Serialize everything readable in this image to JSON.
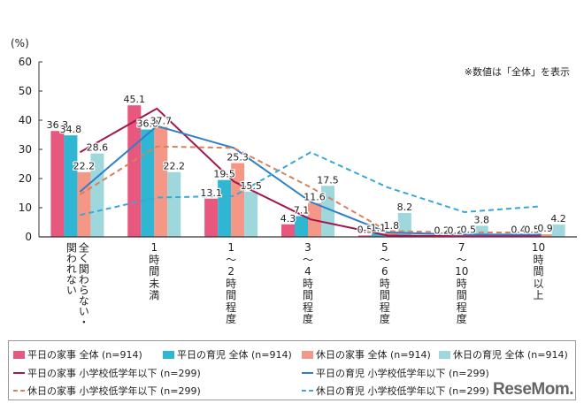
{
  "chart_data": {
    "type": "bar",
    "ylabel": "(%)",
    "note": "※数値は「全体」を表示",
    "ylim": [
      0,
      60
    ],
    "yticks": [
      0,
      10,
      20,
      30,
      40,
      50,
      60
    ],
    "grid": false,
    "legend_placement": "bottom",
    "categories": [
      "全く関わらない・\n関われない",
      "1\n時\n間\n未\n満",
      "1\n〜\n2\n時\n間\n程\n度",
      "3\n〜\n4\n時\n間\n程\n度",
      "5\n〜\n6\n時\n間\n程\n度",
      "7\n〜\n10\n時\n間\n程\n度",
      "10\n時\n間\n以\n上"
    ],
    "bar_series": [
      {
        "name": "平日の家事 全体 (n=914)",
        "color": "#e8577d",
        "values": [
          36.3,
          45.1,
          13.1,
          4.3,
          0.5,
          0.2,
          0.4
        ]
      },
      {
        "name": "平日の育児 全体 (n=914)",
        "color": "#2fb6d2",
        "values": [
          34.8,
          36.8,
          19.5,
          7.1,
          1.1,
          0.2,
          0.5
        ]
      },
      {
        "name": "休日の家事 全体 (n=914)",
        "color": "#f49787",
        "values": [
          22.2,
          37.7,
          25.3,
          11.6,
          1.8,
          0.5,
          0.9
        ]
      },
      {
        "name": "休日の育児 全体 (n=914)",
        "color": "#9fd8dc",
        "values": [
          28.6,
          22.2,
          15.5,
          17.5,
          8.2,
          3.8,
          4.2
        ]
      }
    ],
    "line_series": [
      {
        "name": "平日の家事 小学校低学年以下 (n=299)",
        "color": "#a3174f",
        "dashed": false,
        "values": [
          29,
          44,
          19,
          6,
          0.5,
          0.2,
          0.3
        ]
      },
      {
        "name": "平日の育児 小学校低学年以下 (n=299)",
        "color": "#2f7fc6",
        "dashed": false,
        "values": [
          15.5,
          38,
          30.5,
          12,
          1.5,
          0.8,
          0.8
        ]
      },
      {
        "name": "休日の家事 小学校低学年以下 (n=299)",
        "color": "#d9805f",
        "dashed": true,
        "values": [
          14.5,
          31,
          30.5,
          17,
          2,
          1.5,
          1.5
        ]
      },
      {
        "name": "休日の育児 小学校低学年以下 (n=299)",
        "color": "#38a8d6",
        "dashed": true,
        "values": [
          7.5,
          13.5,
          14,
          29,
          17,
          8.5,
          10.5
        ]
      }
    ]
  },
  "watermark": "ReseMom"
}
